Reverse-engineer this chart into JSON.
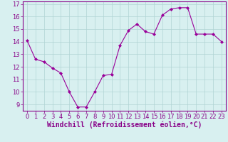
{
  "x": [
    0,
    1,
    2,
    3,
    4,
    5,
    6,
    7,
    8,
    9,
    10,
    11,
    12,
    13,
    14,
    15,
    16,
    17,
    18,
    19,
    20,
    21,
    22,
    23
  ],
  "y": [
    14.1,
    12.6,
    12.4,
    11.9,
    11.5,
    10.0,
    8.8,
    8.8,
    10.0,
    11.3,
    11.4,
    13.7,
    14.9,
    15.4,
    14.8,
    14.6,
    16.1,
    16.6,
    16.7,
    16.7,
    14.6,
    14.6,
    14.6,
    14.0
  ],
  "xlabel": "Windchill (Refroidissement éolien,°C)",
  "ylim": [
    8.5,
    17.2
  ],
  "xlim": [
    -0.5,
    23.5
  ],
  "yticks": [
    9,
    10,
    11,
    12,
    13,
    14,
    15,
    16,
    17
  ],
  "xticks": [
    0,
    1,
    2,
    3,
    4,
    5,
    6,
    7,
    8,
    9,
    10,
    11,
    12,
    13,
    14,
    15,
    16,
    17,
    18,
    19,
    20,
    21,
    22,
    23
  ],
  "line_color": "#990099",
  "marker": "D",
  "marker_size": 2,
  "bg_color": "#d8f0f0",
  "grid_color": "#b0d4d4",
  "xlabel_fontsize": 7,
  "tick_fontsize": 6,
  "tick_color": "#880088",
  "label_color": "#880088",
  "spine_color": "#880088"
}
